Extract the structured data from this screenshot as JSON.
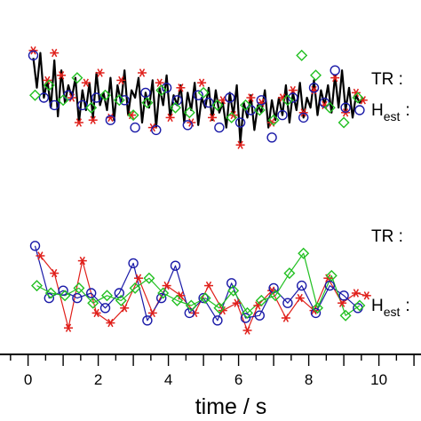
{
  "chart_data": {
    "type": "line",
    "xlabel": "time / s",
    "ylabel": "",
    "xlim": [
      -0.8,
      11.2
    ],
    "x_ticks": [
      "0",
      "2",
      "4",
      "6",
      "8",
      "10"
    ],
    "grid": false,
    "labels": {
      "tr_upper": "TR :",
      "h_upper_main": "H",
      "h_upper_sub": "est",
      "h_upper_colon": ":",
      "tr_lower": "TR :",
      "h_lower_main": "H",
      "h_lower_sub": "est",
      "h_lower_colon": ":"
    },
    "panels": [
      {
        "name": "upper",
        "ylim": [
          0,
          1
        ],
        "series": [
          {
            "role": "line",
            "color": "#000000",
            "x": [
              0.15,
              0.25,
              0.35,
              0.45,
              0.55,
              0.65,
              0.75,
              0.85,
              0.95,
              1.05,
              1.15,
              1.25,
              1.35,
              1.45,
              1.55,
              1.65,
              1.75,
              1.85,
              1.95,
              2.05,
              2.15,
              2.25,
              2.35,
              2.45,
              2.55,
              2.65,
              2.75,
              2.85,
              2.95,
              3.05,
              3.15,
              3.25,
              3.35,
              3.45,
              3.55,
              3.65,
              3.75,
              3.85,
              3.95,
              4.05,
              4.15,
              4.25,
              4.35,
              4.45,
              4.55,
              4.65,
              4.75,
              4.85,
              4.95,
              5.05,
              5.15,
              5.25,
              5.35,
              5.45,
              5.55,
              5.65,
              5.75,
              5.85,
              5.95,
              6.05,
              6.15,
              6.25,
              6.35,
              6.45,
              6.55,
              6.65,
              6.75,
              6.85,
              6.95,
              7.05,
              7.15,
              7.25,
              7.35,
              7.45,
              7.55,
              7.65,
              7.75,
              7.85,
              7.95,
              8.05,
              8.15,
              8.25,
              8.35,
              8.45,
              8.55,
              8.65,
              8.75,
              8.85,
              8.95,
              9.05,
              9.15,
              9.25,
              9.35,
              9.45,
              9.55
            ],
            "y": [
              0.82,
              0.58,
              0.86,
              0.5,
              0.64,
              0.42,
              0.8,
              0.35,
              0.72,
              0.46,
              0.6,
              0.5,
              0.66,
              0.3,
              0.56,
              0.4,
              0.62,
              0.34,
              0.7,
              0.44,
              0.54,
              0.4,
              0.66,
              0.32,
              0.6,
              0.46,
              0.72,
              0.36,
              0.56,
              0.5,
              0.66,
              0.3,
              0.54,
              0.42,
              0.64,
              0.26,
              0.58,
              0.44,
              0.68,
              0.34,
              0.52,
              0.44,
              0.6,
              0.3,
              0.54,
              0.4,
              0.62,
              0.28,
              0.5,
              0.42,
              0.58,
              0.32,
              0.56,
              0.38,
              0.46,
              0.26,
              0.54,
              0.36,
              0.6,
              0.14,
              0.46,
              0.34,
              0.52,
              0.24,
              0.44,
              0.38,
              0.56,
              0.26,
              0.48,
              0.32,
              0.5,
              0.36,
              0.6,
              0.3,
              0.54,
              0.4,
              0.62,
              0.34,
              0.5,
              0.42,
              0.64,
              0.36,
              0.56,
              0.44,
              0.6,
              0.38,
              0.68,
              0.42,
              0.72,
              0.4,
              0.58,
              0.34,
              0.52,
              0.46,
              0.5
            ]
          },
          {
            "role": "markers",
            "marker": "asterisk",
            "color": "#e0201b",
            "x": [
              0.15,
              0.55,
              0.75,
              0.95,
              1.25,
              1.45,
              1.65,
              1.85,
              2.05,
              2.35,
              2.65,
              2.95,
              3.25,
              3.55,
              3.75,
              4.05,
              4.35,
              4.65,
              4.95,
              5.25,
              5.55,
              5.85,
              6.05,
              6.35,
              6.65,
              6.95,
              7.25,
              7.55,
              7.85,
              8.15,
              8.45,
              8.75,
              9.05,
              9.35,
              9.55
            ],
            "y": [
              0.88,
              0.64,
              0.86,
              0.68,
              0.5,
              0.3,
              0.62,
              0.32,
              0.7,
              0.34,
              0.64,
              0.36,
              0.7,
              0.26,
              0.62,
              0.34,
              0.58,
              0.3,
              0.62,
              0.34,
              0.48,
              0.36,
              0.12,
              0.5,
              0.46,
              0.3,
              0.5,
              0.56,
              0.38,
              0.56,
              0.44,
              0.66,
              0.38,
              0.54,
              0.48
            ]
          },
          {
            "role": "markers",
            "marker": "circle",
            "color": "#1a1aa8",
            "x": [
              0.15,
              0.45,
              0.75,
              1.15,
              1.55,
              1.95,
              2.35,
              2.75,
              3.05,
              3.35,
              3.65,
              3.95,
              4.25,
              4.55,
              4.85,
              5.15,
              5.45,
              5.75,
              6.05,
              6.35,
              6.65,
              6.95,
              7.25,
              7.55,
              7.85,
              8.15,
              8.45,
              8.75,
              9.05,
              9.45
            ],
            "y": [
              0.84,
              0.5,
              0.44,
              0.52,
              0.44,
              0.5,
              0.32,
              0.48,
              0.26,
              0.54,
              0.24,
              0.58,
              0.48,
              0.28,
              0.52,
              0.46,
              0.26,
              0.5,
              0.3,
              0.4,
              0.48,
              0.18,
              0.36,
              0.5,
              0.34,
              0.58,
              0.46,
              0.72,
              0.42,
              0.4
            ]
          },
          {
            "role": "markers",
            "marker": "diamond",
            "color": "#22c022",
            "x": [
              0.2,
              0.6,
              1.0,
              1.4,
              1.8,
              2.2,
              2.6,
              3.0,
              3.4,
              3.8,
              4.2,
              4.6,
              5.0,
              5.4,
              5.8,
              6.2,
              6.6,
              7.0,
              7.4,
              7.8,
              8.2,
              8.6,
              9.0,
              9.4
            ],
            "y": [
              0.52,
              0.6,
              0.48,
              0.66,
              0.42,
              0.52,
              0.48,
              0.36,
              0.46,
              0.56,
              0.42,
              0.38,
              0.54,
              0.44,
              0.34,
              0.44,
              0.4,
              0.32,
              0.48,
              0.84,
              0.68,
              0.42,
              0.3,
              0.5
            ]
          }
        ]
      },
      {
        "name": "lower",
        "ylim": [
          0,
          1
        ],
        "series": [
          {
            "role": "line+markers",
            "marker": "asterisk",
            "color": "#e0201b",
            "x": [
              0.35,
              0.75,
              1.15,
              1.55,
              1.95,
              2.35,
              2.75,
              3.15,
              3.55,
              3.95,
              4.35,
              4.75,
              5.15,
              5.55,
              5.95,
              6.25,
              6.55,
              6.95,
              7.35,
              7.75,
              8.15,
              8.55,
              8.95,
              9.35,
              9.65
            ],
            "y": [
              0.8,
              0.66,
              0.22,
              0.76,
              0.34,
              0.26,
              0.38,
              0.62,
              0.34,
              0.56,
              0.48,
              0.34,
              0.56,
              0.36,
              0.42,
              0.2,
              0.4,
              0.52,
              0.3,
              0.46,
              0.36,
              0.62,
              0.42,
              0.5,
              0.48
            ]
          },
          {
            "role": "line+markers",
            "marker": "circle",
            "color": "#1a1aa8",
            "x": [
              0.2,
              0.6,
              1.0,
              1.4,
              1.8,
              2.2,
              2.6,
              3.0,
              3.4,
              3.8,
              4.2,
              4.6,
              5.0,
              5.4,
              5.8,
              6.2,
              6.6,
              7.0,
              7.4,
              7.8,
              8.2,
              8.6,
              9.0,
              9.4
            ],
            "y": [
              0.88,
              0.46,
              0.52,
              0.46,
              0.5,
              0.38,
              0.5,
              0.74,
              0.28,
              0.46,
              0.72,
              0.34,
              0.46,
              0.28,
              0.58,
              0.3,
              0.32,
              0.54,
              0.42,
              0.56,
              0.34,
              0.56,
              0.48,
              0.38
            ]
          },
          {
            "role": "line+markers",
            "marker": "diamond",
            "color": "#22c022",
            "x": [
              0.25,
              0.65,
              1.05,
              1.45,
              1.85,
              2.25,
              2.65,
              3.05,
              3.45,
              3.85,
              4.25,
              4.65,
              5.05,
              5.45,
              5.85,
              6.25,
              6.65,
              7.05,
              7.45,
              7.85,
              8.25,
              8.65,
              9.05,
              9.45
            ],
            "y": [
              0.56,
              0.5,
              0.48,
              0.54,
              0.42,
              0.48,
              0.44,
              0.54,
              0.62,
              0.5,
              0.44,
              0.4,
              0.46,
              0.38,
              0.52,
              0.34,
              0.44,
              0.48,
              0.66,
              0.82,
              0.38,
              0.64,
              0.32,
              0.4
            ]
          }
        ]
      }
    ]
  }
}
